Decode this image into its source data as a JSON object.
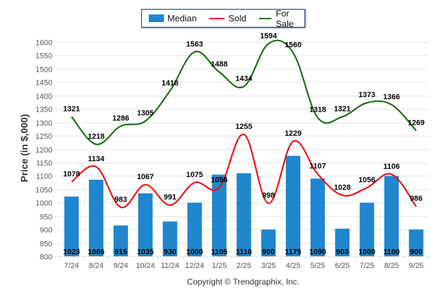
{
  "chart_data": {
    "type": "bar+line",
    "title": "",
    "xlabel": "",
    "ylabel": "Price (in $,000)",
    "ylim": [
      800,
      1600
    ],
    "ytick_step": 50,
    "yticks": [
      "800",
      "850",
      "900",
      "950",
      "1000",
      "1050",
      "1100",
      "1150",
      "1200",
      "1250",
      "1300",
      "1350",
      "1400",
      "1450",
      "1500",
      "1550",
      "1600"
    ],
    "grid": true,
    "legend_position": "top-center",
    "categories": [
      "7/24",
      "8/24",
      "9/24",
      "10/24",
      "11/24",
      "12/24",
      "1/25",
      "2/25",
      "3/25",
      "4/25",
      "5/25",
      "6/25",
      "7/25",
      "8/25",
      "9/25"
    ],
    "series": [
      {
        "name": "Median",
        "type": "bar",
        "color": "#1f86cf",
        "values": [
          1023,
          1086,
          915,
          1035,
          930,
          1000,
          1105,
          1110,
          900,
          1175,
          1090,
          903,
          1000,
          1100,
          900
        ]
      },
      {
        "name": "Sold",
        "type": "line",
        "color": "#ee1111",
        "values": [
          1078,
          1134,
          983,
          1067,
          991,
          1075,
          1056,
          1255,
          998,
          1229,
          1107,
          1028,
          1056,
          1106,
          986
        ]
      },
      {
        "name": "For Sale",
        "type": "line",
        "color": "#1a6e12",
        "values": [
          1321,
          1218,
          1286,
          1305,
          1418,
          1563,
          1488,
          1434,
          1594,
          1560,
          1318,
          1321,
          1373,
          1366,
          1269
        ]
      }
    ]
  },
  "legend": {
    "median": "Median",
    "sold": "Sold",
    "for_sale": "For Sale"
  },
  "footer": {
    "copyright": "Copyright © Trendgraphix, Inc."
  }
}
